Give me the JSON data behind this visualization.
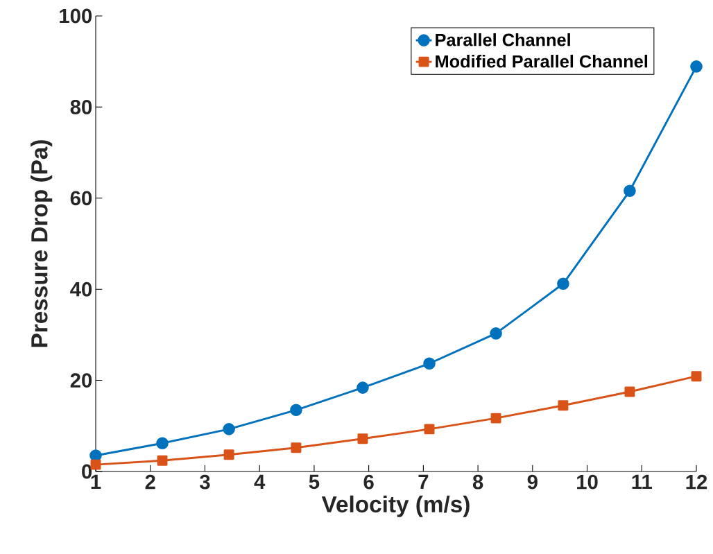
{
  "chart_data": {
    "type": "line",
    "xlabel": "Velocity (m/s)",
    "ylabel": "Pressure Drop (Pa)",
    "x": [
      1,
      2.22,
      3.44,
      4.67,
      5.89,
      7.11,
      8.33,
      9.56,
      10.78,
      12
    ],
    "series": [
      {
        "name": "Parallel Channel",
        "color": "#0072bd",
        "marker": "circle",
        "values": [
          3.5,
          6.2,
          9.3,
          13.5,
          18.4,
          23.7,
          30.3,
          41.2,
          61.6,
          88.9
        ]
      },
      {
        "name": "Modified Parallel Channel",
        "color": "#d95319",
        "marker": "square",
        "values": [
          1.5,
          2.4,
          3.7,
          5.2,
          7.2,
          9.3,
          11.7,
          14.5,
          17.5,
          20.9
        ]
      }
    ],
    "xlim": [
      1,
      12
    ],
    "xticks": [
      1,
      2,
      3,
      4,
      5,
      6,
      7,
      8,
      9,
      10,
      11,
      12
    ],
    "ylim": [
      0,
      100
    ],
    "yticks": [
      0,
      20,
      40,
      60,
      80,
      100
    ],
    "legend": "top right",
    "line_style": "solid",
    "grid": false
  }
}
